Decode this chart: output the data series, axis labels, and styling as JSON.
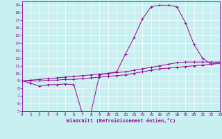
{
  "xlabel": "Windchill (Refroidissement éolien,°C)",
  "bg_color": "#c8f0f0",
  "line_color": "#990099",
  "grid_color": "#ffffff",
  "x_hours": [
    0,
    1,
    2,
    3,
    4,
    5,
    6,
    7,
    8,
    9,
    10,
    11,
    12,
    13,
    14,
    15,
    16,
    17,
    18,
    19,
    20,
    21,
    22,
    23
  ],
  "y_temp": [
    9,
    8.7,
    8.3,
    8.5,
    8.5,
    8.6,
    8.5,
    4.7,
    4.8,
    9.8,
    10.0,
    10.2,
    12.5,
    14.7,
    17.2,
    18.8,
    19.0,
    19.0,
    18.8,
    16.7,
    13.8,
    12.0,
    11.2,
    11.5
  ],
  "y_line1": [
    9,
    9.1,
    9.2,
    9.3,
    9.4,
    9.5,
    9.6,
    9.7,
    9.8,
    9.9,
    10.0,
    10.1,
    10.2,
    10.4,
    10.6,
    10.8,
    11.0,
    11.2,
    11.4,
    11.5,
    11.5,
    11.5,
    11.5,
    11.5
  ],
  "y_line2": [
    9,
    9.0,
    9.0,
    9.1,
    9.1,
    9.2,
    9.2,
    9.3,
    9.4,
    9.5,
    9.6,
    9.7,
    9.8,
    10.0,
    10.2,
    10.4,
    10.6,
    10.7,
    10.8,
    10.9,
    11.0,
    11.1,
    11.2,
    11.3
  ],
  "ylim": [
    5,
    19.5
  ],
  "xlim": [
    0,
    23
  ],
  "yticks": [
    5,
    6,
    7,
    8,
    9,
    10,
    11,
    12,
    13,
    14,
    15,
    16,
    17,
    18,
    19
  ],
  "xticks": [
    0,
    1,
    2,
    3,
    4,
    5,
    6,
    7,
    8,
    9,
    10,
    11,
    12,
    13,
    14,
    15,
    16,
    17,
    18,
    19,
    20,
    21,
    22,
    23
  ]
}
